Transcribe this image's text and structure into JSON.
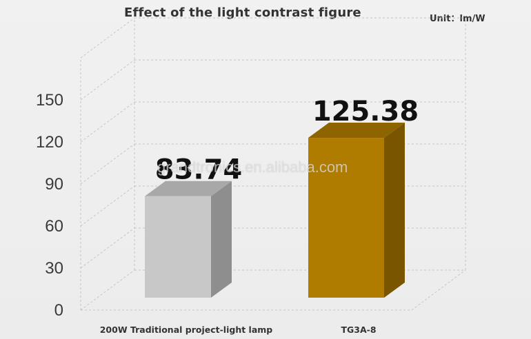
{
  "title": "Effect of the light contrast figure",
  "unit": "Unit：lm/W",
  "watermark": "grandtronics.en.alibaba.com",
  "chart_data": {
    "type": "bar",
    "categories": [
      "200W Traditional project-light lamp",
      "TG3A-8"
    ],
    "values": [
      83.74,
      125.38
    ],
    "data_labels": [
      "83.74",
      "125.38"
    ],
    "yticks": [
      "0",
      "30",
      "60",
      "90",
      "120",
      "150"
    ],
    "ylim": [
      0,
      150
    ],
    "grid": true,
    "bar_colors": [
      "#c8c8c8",
      "#b07c00"
    ],
    "bar_side_colors": [
      "#8e8e8e",
      "#7a5500"
    ],
    "bar_top_colors": [
      "#a8a8a8",
      "#8e6400"
    ]
  }
}
